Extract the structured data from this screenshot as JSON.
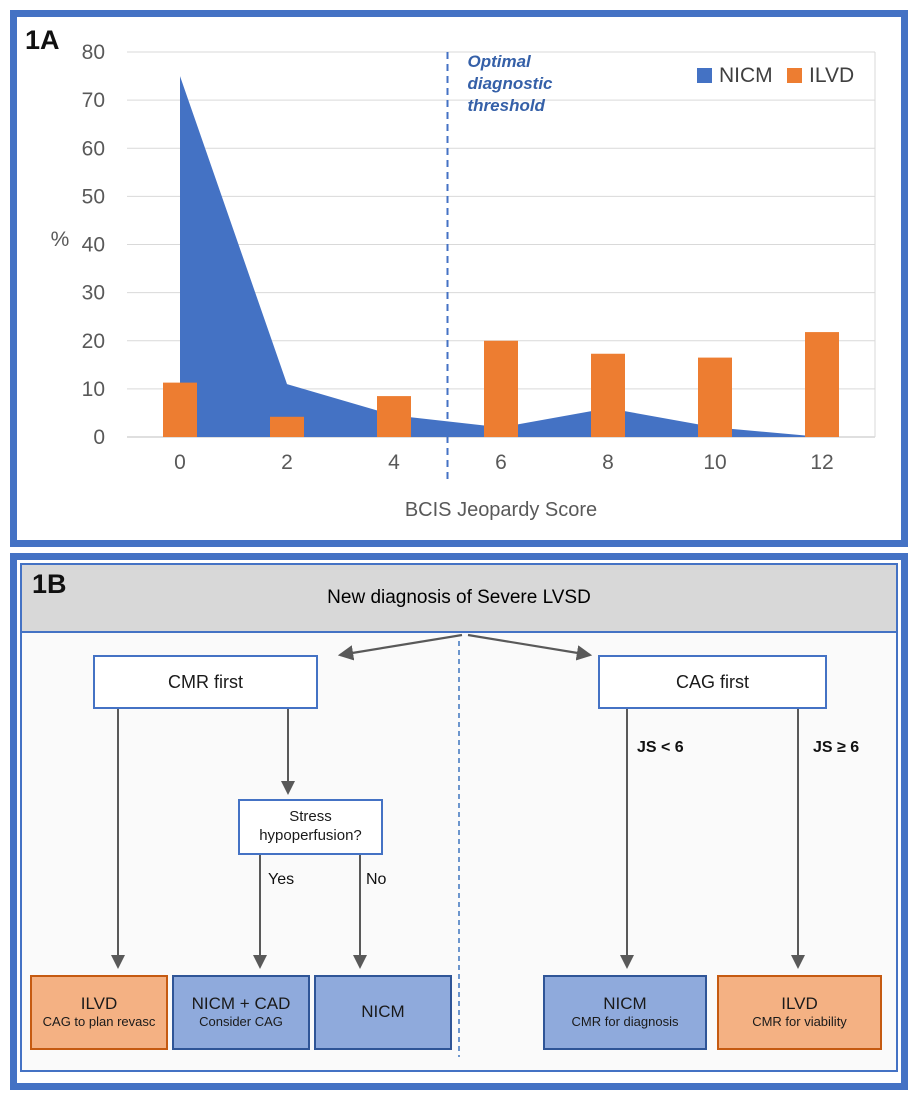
{
  "figure": {
    "panel_a_label": "1A",
    "panel_b_label": "1B"
  },
  "colors": {
    "frame_blue": "#4472C4",
    "nicm_blue": "#4472C4",
    "ilvd_orange": "#ED7D31",
    "gridline": "#D9D9D9",
    "axis_text": "#595959",
    "legend_text": "#404040",
    "annotation_blue": "#3560A8",
    "flow_line_gray": "#595959",
    "outcome_blue_fill": "#8FAADC",
    "outcome_blue_border": "#2F5597",
    "outcome_orange_fill": "#F4B183",
    "outcome_orange_border": "#C55A11",
    "header_gray": "#D8D8D8"
  },
  "chart_data": {
    "type": "combo-area-column",
    "categories": [
      "0",
      "2",
      "4",
      "6",
      "8",
      "10",
      "12"
    ],
    "series": [
      {
        "name": "NICM",
        "type": "area",
        "color": "#4472C4",
        "values": [
          75,
          11,
          4.5,
          2,
          6,
          2,
          0
        ]
      },
      {
        "name": "ILVD",
        "type": "column",
        "color": "#ED7D31",
        "values": [
          11.3,
          4.2,
          8.5,
          20,
          17.3,
          16.5,
          21.8
        ]
      }
    ],
    "xlabel": "BCIS Jeopardy Score",
    "ylabel": "%",
    "ylim": [
      0,
      80
    ],
    "yticks": [
      0,
      10,
      20,
      30,
      40,
      50,
      60,
      70,
      80
    ],
    "grid": "horizontal",
    "legend_position": "top-right",
    "annotation": {
      "lines": [
        "Optimal",
        "diagnostic",
        "threshold"
      ],
      "x": 5,
      "style": "dashed-vertical-line"
    }
  },
  "flowchart": {
    "title": "New diagnosis of Severe LVSD",
    "left_branch": {
      "entry": "CMR first",
      "decision": "Stress hypoperfusion?",
      "yes": "Yes",
      "no": "No",
      "outcomes": [
        {
          "title": "ILVD",
          "subtitle": "CAG to plan revasc"
        },
        {
          "title": "NICM + CAD",
          "subtitle": "Consider CAG"
        },
        {
          "title": "NICM",
          "subtitle": ""
        }
      ]
    },
    "right_branch": {
      "entry": "CAG first",
      "low_label": "JS < 6",
      "high_label": "JS ≥ 6",
      "outcomes": [
        {
          "title": "NICM",
          "subtitle": "CMR for diagnosis"
        },
        {
          "title": "ILVD",
          "subtitle": "CMR for viability"
        }
      ]
    }
  }
}
